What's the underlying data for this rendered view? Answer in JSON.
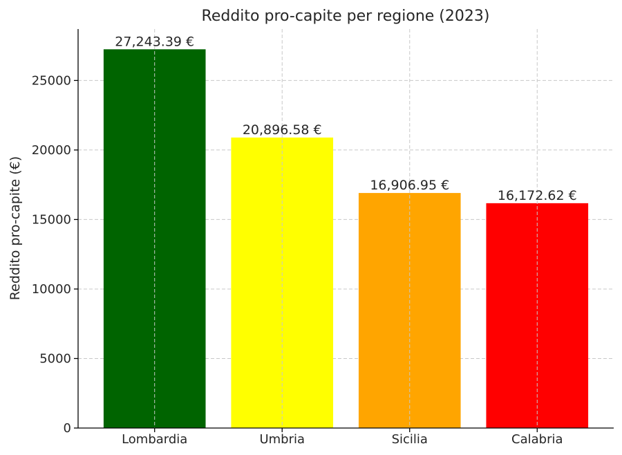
{
  "chart_data": {
    "type": "bar",
    "title": "Reddito pro-capite per regione (2023)",
    "xlabel": "",
    "ylabel": "Reddito pro-capite (€)",
    "categories": [
      "Lombardia",
      "Umbria",
      "Sicilia",
      "Calabria"
    ],
    "values": [
      27243.39,
      20896.58,
      16906.95,
      16172.62
    ],
    "value_labels": [
      "27,243.39 €",
      "20,896.58 €",
      "16,906.95 €",
      "16,172.62 €"
    ],
    "colors": [
      "#006400",
      "#ffff00",
      "#ffa500",
      "#ff0000"
    ],
    "ylim": [
      0,
      28700
    ],
    "yticks": [
      0,
      5000,
      10000,
      15000,
      20000,
      25000
    ],
    "grid": true
  }
}
